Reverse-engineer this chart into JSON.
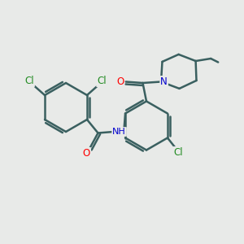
{
  "bg_color": "#e8eae8",
  "bond_color": "#3a6060",
  "bond_width": 1.8,
  "atom_colors": {
    "Cl": "#228B22",
    "O": "#FF0000",
    "N": "#0000CD",
    "C": "#3a6060"
  },
  "font_size": 8.5,
  "fig_size": [
    3.0,
    3.0
  ],
  "dpi": 100
}
